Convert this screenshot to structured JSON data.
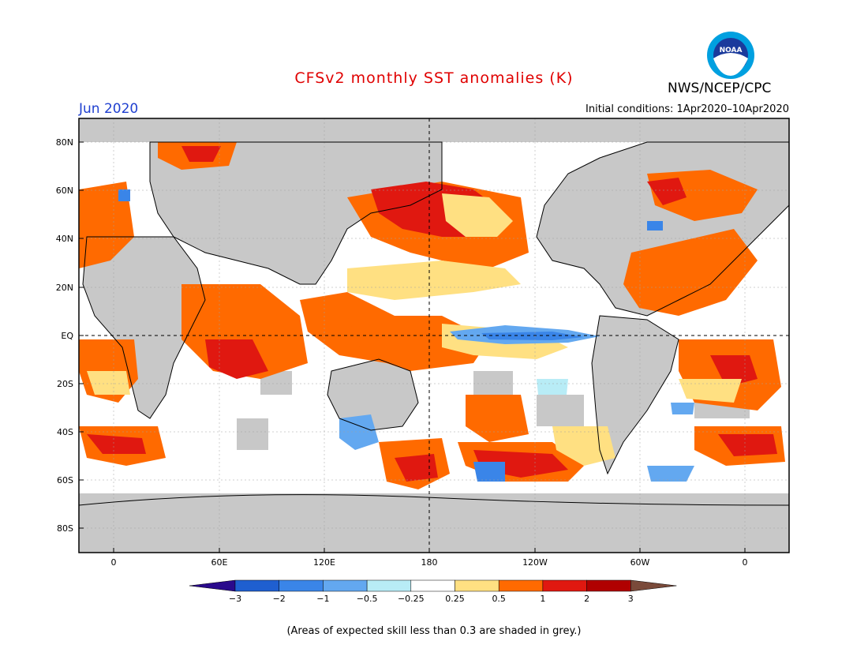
{
  "header": {
    "title": "CFSv2 monthly SST anomalies (K)",
    "month": "Jun 2020",
    "initial_conditions": "Initial conditions: 1Apr2020–10Apr2020",
    "agency": "NWS/NCEP/CPC",
    "logo_text": "NOAA"
  },
  "map": {
    "lat_labels": [
      "80N",
      "60N",
      "40N",
      "20N",
      "EQ",
      "20S",
      "40S",
      "60S",
      "80S"
    ],
    "lon_labels": [
      "0",
      "60E",
      "120E",
      "180",
      "120W",
      "60W",
      "0"
    ],
    "land_color": "#c8c8c8",
    "grey_skill_color": "#c8c8c8"
  },
  "colorbar": {
    "labels": [
      "−3",
      "−2",
      "−1",
      "−0.5",
      "−0.25",
      "0.25",
      "0.5",
      "1",
      "2",
      "3"
    ],
    "colors": [
      "#2a0a8c",
      "#1f5fd0",
      "#3a85e8",
      "#63a8f0",
      "#b8ecf6",
      "#ffffff",
      "#ffe082",
      "#ff6a00",
      "#e01810",
      "#b00000",
      "#7a4a3a"
    ]
  },
  "footnote": "(Areas of expected skill less than 0.3 are shaded in grey.)"
}
